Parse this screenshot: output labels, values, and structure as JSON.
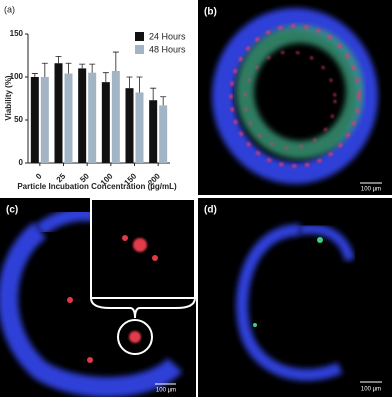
{
  "chart_data": {
    "type": "bar",
    "panel_label": "(a)",
    "x_label": "Particle Incubation Concentration (µg/mL)",
    "y_label": "Viability (%)",
    "categories": [
      "0",
      "25",
      "50",
      "100",
      "150",
      "200"
    ],
    "series": [
      {
        "name": "24 Hours",
        "color": "#111111",
        "values": [
          100,
          116,
          110,
          94,
          87,
          73
        ],
        "errors": [
          4,
          8,
          5,
          11,
          13,
          14
        ]
      },
      {
        "name": "48 Hours",
        "color": "#a3b5c4",
        "values": [
          100,
          104,
          105,
          107,
          82,
          67
        ],
        "errors": [
          16,
          12,
          10,
          22,
          18,
          10
        ]
      }
    ],
    "ylim": [
      0,
      150
    ],
    "yticks": [
      0,
      50,
      100,
      150
    ],
    "legend": "top-right"
  },
  "panels": [
    {
      "label": "(b)",
      "scale_bar": "100 µm"
    },
    {
      "label": "(c)",
      "scale_bar": "100 µm"
    },
    {
      "label": "(d)",
      "scale_bar": "100 µm"
    }
  ]
}
